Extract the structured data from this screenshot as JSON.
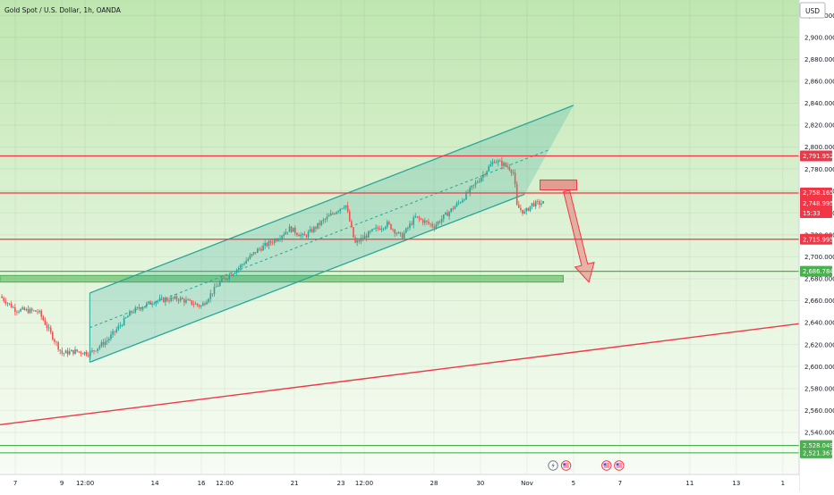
{
  "header": {
    "title": "Gold Spot / U.S. Dollar, 1h, OANDA",
    "currency": "USD"
  },
  "chart_data": {
    "type": "candlestick",
    "symbol": "Gold Spot / U.S. Dollar",
    "interval": "1h",
    "source": "OANDA",
    "currency": "USD",
    "ylim": [
      2514,
      2934
    ],
    "y_ticks": [
      2540,
      2560,
      2580,
      2600,
      2620,
      2640,
      2660,
      2680,
      2700,
      2720,
      2740,
      2760,
      2780,
      2800,
      2820,
      2840,
      2860,
      2880,
      2900,
      2920
    ],
    "y_tick_labels": [
      "2,540.000",
      "2,560.000",
      "2,580.000",
      "2,600.000",
      "2,620.000",
      "2,640.000",
      "2,660.000",
      "2,680.000",
      "2,700.000",
      "2,720.000",
      "2,740.000",
      "2,760.000",
      "2,780.000",
      "2,800.000",
      "2,820.000",
      "2,840.000",
      "2,860.000",
      "2,880.000",
      "2,900.000",
      "2,920.000"
    ],
    "x_ticks": [
      {
        "label": "7",
        "slot": 0
      },
      {
        "label": "9",
        "slot": 1
      },
      {
        "label": "12:00",
        "slot": 1.5
      },
      {
        "label": "14",
        "slot": 3
      },
      {
        "label": "16",
        "slot": 4
      },
      {
        "label": "12:00",
        "slot": 4.5
      },
      {
        "label": "21",
        "slot": 6
      },
      {
        "label": "23",
        "slot": 7
      },
      {
        "label": "12:00",
        "slot": 7.5
      },
      {
        "label": "28",
        "slot": 9
      },
      {
        "label": "30",
        "slot": 10
      },
      {
        "label": "Nov",
        "slot": 11
      },
      {
        "label": "5",
        "slot": 12
      },
      {
        "label": "7",
        "slot": 13
      },
      {
        "label": "11",
        "slot": 14.5
      },
      {
        "label": "13",
        "slot": 15.5
      },
      {
        "label": "1",
        "slot": 16.5
      }
    ],
    "x_slot_range": [
      -0.33,
      16.85
    ],
    "price_path": [
      [
        -0.33,
        2664
      ],
      [
        0,
        2652
      ],
      [
        0.5,
        2650
      ],
      [
        1,
        2612
      ],
      [
        1.3,
        2614
      ],
      [
        1.6,
        2612
      ],
      [
        2,
        2625
      ],
      [
        2.5,
        2650
      ],
      [
        3,
        2660
      ],
      [
        3.5,
        2662
      ],
      [
        4,
        2655
      ],
      [
        4.4,
        2677
      ],
      [
        4.8,
        2690
      ],
      [
        5.2,
        2706
      ],
      [
        5.6,
        2716
      ],
      [
        5.9,
        2726
      ],
      [
        6.2,
        2718
      ],
      [
        6.6,
        2732
      ],
      [
        6.9,
        2742
      ],
      [
        7.1,
        2748
      ],
      [
        7.3,
        2712
      ],
      [
        7.7,
        2724
      ],
      [
        8,
        2730
      ],
      [
        8.3,
        2718
      ],
      [
        8.6,
        2736
      ],
      [
        9,
        2728
      ],
      [
        9.3,
        2740
      ],
      [
        9.6,
        2752
      ],
      [
        10,
        2772
      ],
      [
        10.3,
        2788
      ],
      [
        10.6,
        2782
      ],
      [
        10.72,
        2776
      ],
      [
        10.78,
        2746
      ],
      [
        10.95,
        2740
      ],
      [
        11.1,
        2748
      ],
      [
        11.35,
        2749
      ]
    ],
    "horizontal_lines": [
      {
        "price": 2791.952,
        "label": "2,791.952",
        "color": "#f23645"
      },
      {
        "price": 2758.165,
        "label": "2,758.165",
        "color": "#f23645"
      },
      {
        "price": 2715.995,
        "label": "2,715.995",
        "color": "#f23645"
      },
      {
        "price": 2686.784,
        "label": "2,686.784",
        "color": "#4caf50"
      },
      {
        "price": 2528.049,
        "label": "2,528.049",
        "color": "#4caf50"
      },
      {
        "price": 2521.367,
        "label": "2,521.367",
        "color": "#4caf50"
      }
    ],
    "last_price": {
      "value": "2,748.995",
      "countdown": "15:33",
      "color": "#f23645"
    },
    "channel": {
      "lower": {
        "start": [
          1.6,
          2604
        ],
        "end": [
          10.95,
          2757
        ]
      },
      "upper": {
        "start": [
          1.6,
          2667
        ],
        "end": [
          12,
          2838
        ]
      },
      "fill": "#26a69a",
      "stroke": "#26a69a"
    },
    "trendline": {
      "start": [
        -0.33,
        2547
      ],
      "end": [
        16.85,
        2639
      ],
      "color": "#f23645"
    },
    "support_zone": {
      "x": [
        -0.33,
        11.78
      ],
      "y": [
        2677,
        2683
      ],
      "color": "#4caf50"
    },
    "resistance_box": {
      "x": [
        11.28,
        12.07
      ],
      "y": [
        2761,
        2770
      ],
      "color": "#f23645"
    },
    "projection_arrow": {
      "from": [
        11.85,
        2760
      ],
      "to": [
        12.33,
        2677
      ],
      "color": "#f23645"
    },
    "event_markers": [
      {
        "slot": 11.56,
        "type": "flash"
      },
      {
        "slot": 11.84,
        "type": "flag"
      },
      {
        "slot": 12.71,
        "type": "flag"
      },
      {
        "slot": 12.98,
        "type": "flag"
      }
    ],
    "colors": {
      "up": "#26a69a",
      "down": "#ef5350",
      "background_top": "#c5e8b8",
      "background_bottom": "#f4fbf1"
    }
  }
}
